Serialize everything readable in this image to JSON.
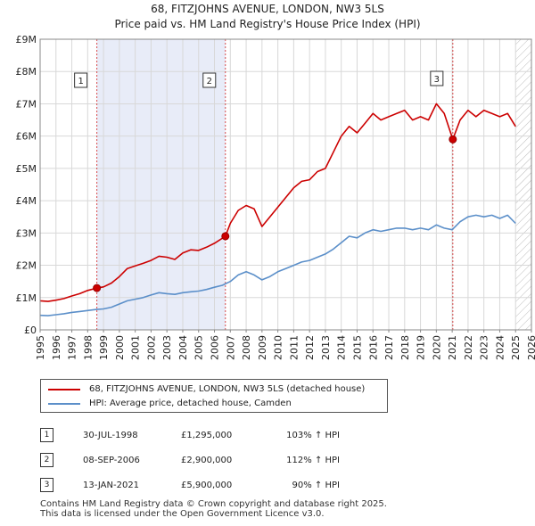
{
  "title_line1": "68, FITZJOHNS AVENUE, LONDON, NW3 5LS",
  "title_line2": "Price paid vs. HM Land Registry's House Price Index (HPI)",
  "chart_data": {
    "type": "line",
    "title": "68, FITZJOHNS AVENUE, LONDON, NW3 5LS — Price paid vs. HM Land Registry's House Price Index (HPI)",
    "xlim": [
      1995,
      2026
    ],
    "ylim": [
      0,
      9000000
    ],
    "x_ticks": [
      1995,
      1996,
      1997,
      1998,
      1999,
      2000,
      2001,
      2002,
      2003,
      2004,
      2005,
      2006,
      2007,
      2008,
      2009,
      2010,
      2011,
      2012,
      2013,
      2014,
      2015,
      2016,
      2017,
      2018,
      2019,
      2020,
      2021,
      2022,
      2023,
      2024,
      2025,
      2026
    ],
    "y_ticks": [
      {
        "value": 0,
        "label": "£0"
      },
      {
        "value": 1000000,
        "label": "£1M"
      },
      {
        "value": 2000000,
        "label": "£2M"
      },
      {
        "value": 3000000,
        "label": "£3M"
      },
      {
        "value": 4000000,
        "label": "£4M"
      },
      {
        "value": 5000000,
        "label": "£5M"
      },
      {
        "value": 6000000,
        "label": "£6M"
      },
      {
        "value": 7000000,
        "label": "£7M"
      },
      {
        "value": 8000000,
        "label": "£8M"
      },
      {
        "value": 9000000,
        "label": "£9M"
      }
    ],
    "grid": true,
    "shaded_periods": [
      [
        1998.58,
        2006.69
      ]
    ],
    "hatched_from": 2025.0,
    "series": [
      {
        "name": "68, FITZJOHNS AVENUE, LONDON, NW3 5LS (detached house)",
        "color": "#cc0000",
        "x": [
          1995.0,
          1995.5,
          1996.0,
          1996.5,
          1997.0,
          1997.5,
          1998.0,
          1998.58,
          1999.0,
          1999.5,
          2000.0,
          2000.5,
          2001.0,
          2001.5,
          2002.0,
          2002.5,
          2003.0,
          2003.5,
          2004.0,
          2004.5,
          2005.0,
          2005.5,
          2006.0,
          2006.69,
          2007.0,
          2007.5,
          2008.0,
          2008.5,
          2009.0,
          2009.5,
          2010.0,
          2010.5,
          2011.0,
          2011.5,
          2012.0,
          2012.5,
          2013.0,
          2013.5,
          2014.0,
          2014.5,
          2015.0,
          2015.5,
          2016.0,
          2016.5,
          2017.0,
          2017.5,
          2018.0,
          2018.5,
          2019.0,
          2019.5,
          2020.0,
          2020.5,
          2021.04,
          2021.5,
          2022.0,
          2022.5,
          2023.0,
          2023.5,
          2024.0,
          2024.5,
          2025.0
        ],
        "values": [
          900000,
          880000,
          920000,
          970000,
          1050000,
          1120000,
          1220000,
          1295000,
          1330000,
          1450000,
          1650000,
          1900000,
          1980000,
          2060000,
          2150000,
          2280000,
          2250000,
          2180000,
          2380000,
          2480000,
          2460000,
          2560000,
          2680000,
          2900000,
          3300000,
          3700000,
          3850000,
          3750000,
          3200000,
          3500000,
          3800000,
          4100000,
          4400000,
          4600000,
          4650000,
          4900000,
          5000000,
          5500000,
          6000000,
          6300000,
          6100000,
          6400000,
          6700000,
          6500000,
          6600000,
          6700000,
          6800000,
          6500000,
          6600000,
          6500000,
          7000000,
          6700000,
          5900000,
          6500000,
          6800000,
          6600000,
          6800000,
          6700000,
          6600000,
          6700000,
          6300000
        ]
      },
      {
        "name": "HPI: Average price, detached house, Camden",
        "color": "#5b8fc9",
        "x": [
          1995.0,
          1995.5,
          1996.0,
          1996.5,
          1997.0,
          1997.5,
          1998.0,
          1998.5,
          1999.0,
          1999.5,
          2000.0,
          2000.5,
          2001.0,
          2001.5,
          2002.0,
          2002.5,
          2003.0,
          2003.5,
          2004.0,
          2004.5,
          2005.0,
          2005.5,
          2006.0,
          2006.5,
          2007.0,
          2007.5,
          2008.0,
          2008.5,
          2009.0,
          2009.5,
          2010.0,
          2010.5,
          2011.0,
          2011.5,
          2012.0,
          2012.5,
          2013.0,
          2013.5,
          2014.0,
          2014.5,
          2015.0,
          2015.5,
          2016.0,
          2016.5,
          2017.0,
          2017.5,
          2018.0,
          2018.5,
          2019.0,
          2019.5,
          2020.0,
          2020.5,
          2021.0,
          2021.5,
          2022.0,
          2022.5,
          2023.0,
          2023.5,
          2024.0,
          2024.5,
          2025.0
        ],
        "values": [
          450000,
          440000,
          470000,
          500000,
          540000,
          570000,
          600000,
          630000,
          650000,
          700000,
          800000,
          900000,
          950000,
          1000000,
          1080000,
          1150000,
          1120000,
          1100000,
          1150000,
          1180000,
          1200000,
          1250000,
          1320000,
          1380000,
          1500000,
          1700000,
          1800000,
          1700000,
          1550000,
          1650000,
          1800000,
          1900000,
          2000000,
          2100000,
          2150000,
          2250000,
          2350000,
          2500000,
          2700000,
          2900000,
          2850000,
          3000000,
          3100000,
          3050000,
          3100000,
          3150000,
          3150000,
          3100000,
          3150000,
          3100000,
          3250000,
          3150000,
          3100000,
          3350000,
          3500000,
          3550000,
          3500000,
          3550000,
          3450000,
          3550000,
          3300000
        ]
      }
    ],
    "sale_markers": [
      {
        "label": "1",
        "x": 1998.58,
        "value": 1295000
      },
      {
        "label": "2",
        "x": 2006.69,
        "value": 2900000
      },
      {
        "label": "3",
        "x": 2021.04,
        "value": 5900000
      }
    ]
  },
  "legend": {
    "property_label": "68, FITZJOHNS AVENUE, LONDON, NW3 5LS (detached house)",
    "hpi_label": "HPI: Average price, detached house, Camden"
  },
  "sales": [
    {
      "num": "1",
      "date": "30-JUL-1998",
      "price": "£1,295,000",
      "hpi": "103% ↑ HPI"
    },
    {
      "num": "2",
      "date": "08-SEP-2006",
      "price": "£2,900,000",
      "hpi": "112% ↑ HPI"
    },
    {
      "num": "3",
      "date": "13-JAN-2021",
      "price": "£5,900,000",
      "hpi": "90% ↑ HPI"
    }
  ],
  "footer": {
    "line1": "Contains HM Land Registry data © Crown copyright and database right 2025.",
    "line2": "This data is licensed under the Open Government Licence v3.0."
  }
}
